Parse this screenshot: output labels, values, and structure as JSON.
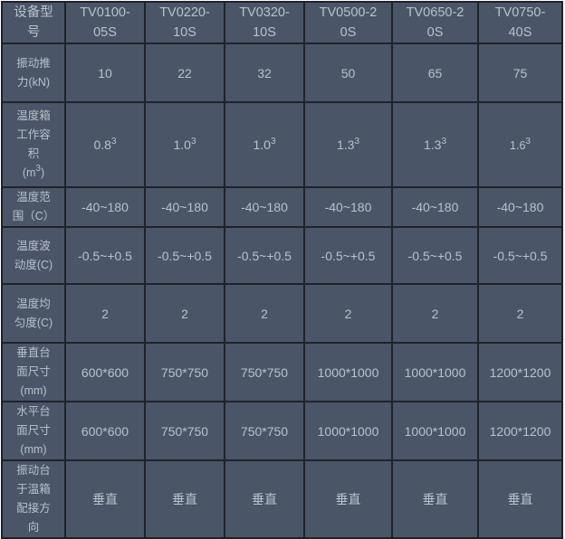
{
  "header": {
    "label": "设备型号",
    "models": [
      "TV0100-05S",
      "TV0220-10S",
      "TV0320-10S",
      "TV0500-20S",
      "TV0650-20S",
      "TV0750-40S"
    ]
  },
  "rows": [
    {
      "label": "振动推力(kN)",
      "values": [
        "10",
        "22",
        "32",
        "50",
        "65",
        "75"
      ]
    },
    {
      "label": "温度箱工作容积",
      "unit": "(m",
      "unit_sup": "3",
      "unit_end": ")",
      "values": [
        {
          "base": "0.8",
          "sup": "3"
        },
        {
          "base": "1.0",
          "sup": "3"
        },
        {
          "base": "1.0",
          "sup": "3"
        },
        {
          "base": "1.3",
          "sup": "3"
        },
        {
          "base": "1.3",
          "sup": "3"
        },
        {
          "base": "1.6",
          "sup": "3"
        }
      ]
    },
    {
      "label": "温度范围（C）",
      "values": [
        "-40~180",
        "-40~180",
        "-40~180",
        "-40~180",
        "-40~180",
        "-40~180"
      ]
    },
    {
      "label": "温度波动度(C)",
      "values": [
        "-0.5~+0.5",
        "-0.5~+0.5",
        "-0.5~+0.5",
        "-0.5~+0.5",
        "-0.5~+0.5",
        "-0.5~+0.5"
      ]
    },
    {
      "label": "温度均匀度(C)",
      "values": [
        "2",
        "2",
        "2",
        "2",
        "2",
        "2"
      ]
    },
    {
      "label": "垂直台面尺寸(mm)",
      "values": [
        "600*600",
        "750*750",
        "750*750",
        "1000*1000",
        "1000*1000",
        "1200*1200"
      ]
    },
    {
      "label": "水平台面尺寸(mm)",
      "values": [
        "600*600",
        "750*750",
        "750*750",
        "1000*1000",
        "1000*1000",
        "1200*1200"
      ]
    },
    {
      "label": "振动台于温箱配接方向",
      "values": [
        "垂直",
        "垂直",
        "垂直",
        "垂直",
        "垂直",
        "垂直"
      ]
    }
  ],
  "colors": {
    "background": "#4a5568",
    "text": "#b9c1cc",
    "border": "#1f2328"
  }
}
